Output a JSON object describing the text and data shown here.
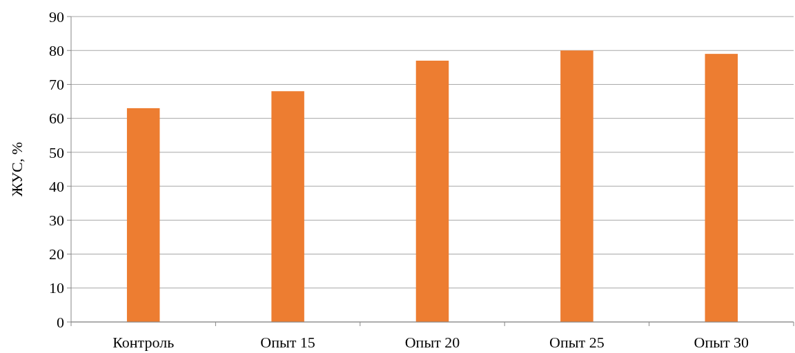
{
  "chart_data": {
    "type": "bar",
    "ylabel": "ЖУС, %",
    "categories": [
      "Контроль",
      "Опыт 15",
      "Опыт 20",
      "Опыт 25",
      "Опыт 30"
    ],
    "values": [
      63,
      68,
      77,
      80,
      79
    ],
    "color": "#ed7d31",
    "ylim": [
      0,
      90
    ],
    "yticks": [
      0,
      10,
      20,
      30,
      40,
      50,
      60,
      70,
      80,
      90
    ],
    "grid": "y"
  }
}
